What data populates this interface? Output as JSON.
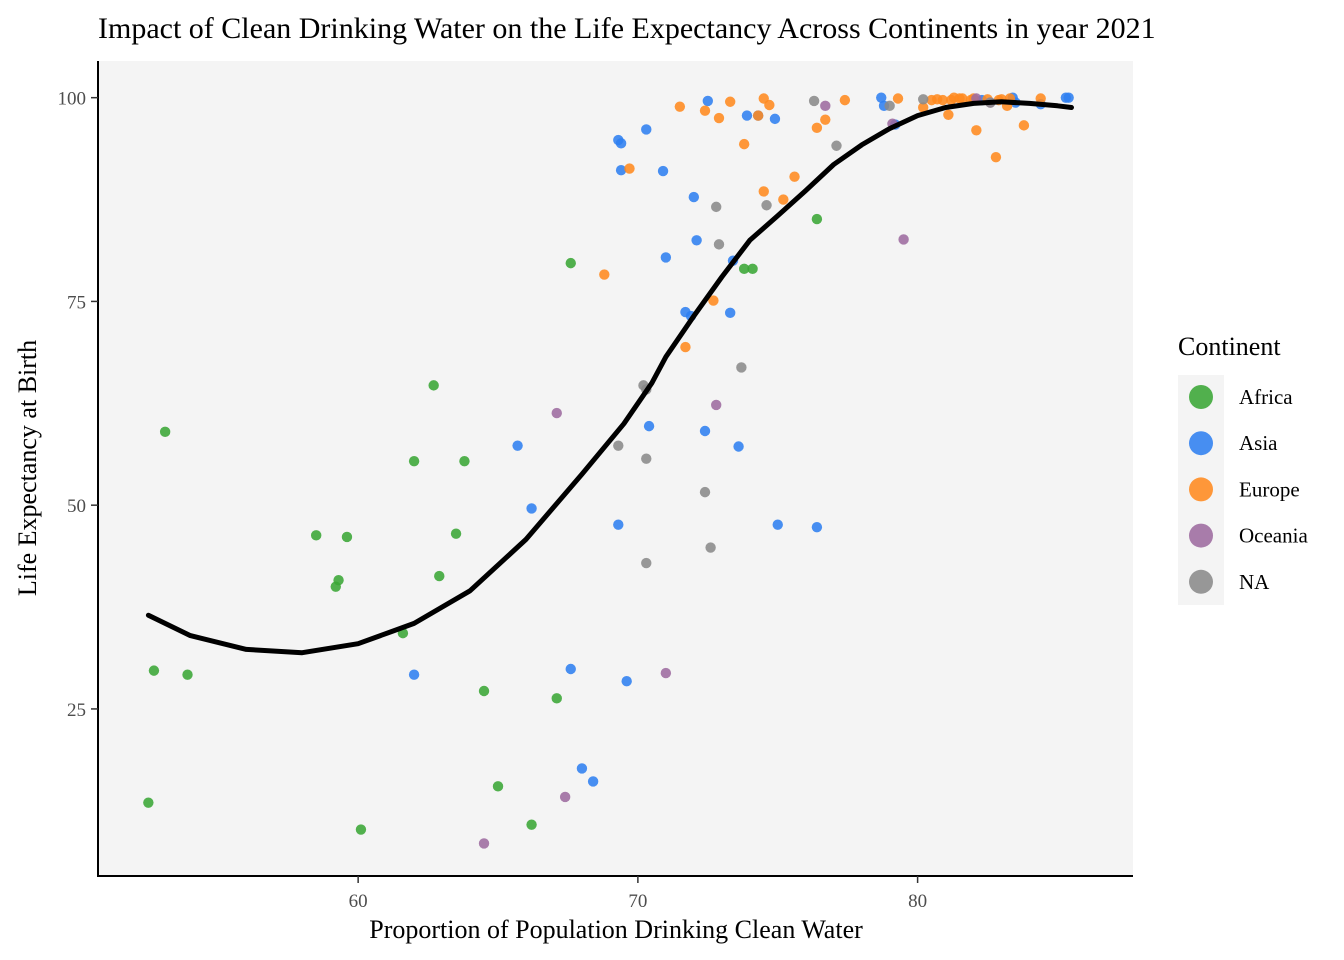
{
  "chart_data": {
    "type": "scatter",
    "title": "Impact of Clean Drinking Water on the Life Expectancy Across Continents in year 2021",
    "xlabel": "Proportion of Population Drinking Clean Water",
    "ylabel": "Life Expectancy at Birth",
    "xlim": [
      50.7,
      87.7
    ],
    "ylim": [
      4.5,
      104.5
    ],
    "x_ticks": [
      60,
      70,
      80
    ],
    "y_ticks": [
      25,
      50,
      75,
      100
    ],
    "grid": false,
    "background": "#f4f4f4",
    "legend": {
      "title": "Continent",
      "position": "right",
      "entries": [
        "Africa",
        "Asia",
        "Europe",
        "Oceania",
        "NA"
      ]
    },
    "colors": {
      "Africa": "#3aa635",
      "Asia": "#2f7ff0",
      "Europe": "#ff8a1f",
      "Oceania": "#9d6b9f",
      "NA": "#8a8a8a"
    },
    "series": [
      {
        "name": "Africa",
        "points": [
          [
            52.5,
            13.5
          ],
          [
            52.7,
            29.7
          ],
          [
            53.1,
            59.0
          ],
          [
            53.9,
            29.2
          ],
          [
            58.5,
            46.3
          ],
          [
            59.2,
            40.0
          ],
          [
            59.3,
            40.8
          ],
          [
            59.6,
            46.1
          ],
          [
            60.1,
            10.2
          ],
          [
            61.6,
            34.3
          ],
          [
            62.0,
            55.4
          ],
          [
            62.7,
            64.7
          ],
          [
            62.9,
            41.3
          ],
          [
            63.5,
            46.5
          ],
          [
            63.8,
            55.4
          ],
          [
            64.5,
            27.2
          ],
          [
            65.0,
            15.5
          ],
          [
            66.2,
            10.8
          ],
          [
            67.1,
            26.3
          ],
          [
            67.6,
            79.7
          ],
          [
            73.8,
            79.0
          ],
          [
            74.1,
            79.0
          ],
          [
            76.4,
            85.1
          ]
        ]
      },
      {
        "name": "Asia",
        "points": [
          [
            62.0,
            29.2
          ],
          [
            65.7,
            57.3
          ],
          [
            66.2,
            49.6
          ],
          [
            67.6,
            29.9
          ],
          [
            68.0,
            17.7
          ],
          [
            68.4,
            16.1
          ],
          [
            69.3,
            47.6
          ],
          [
            69.3,
            94.8
          ],
          [
            69.4,
            94.4
          ],
          [
            69.4,
            91.1
          ],
          [
            69.6,
            28.4
          ],
          [
            70.3,
            96.1
          ],
          [
            70.4,
            59.7
          ],
          [
            70.9,
            91.0
          ],
          [
            71.0,
            80.4
          ],
          [
            71.7,
            73.7
          ],
          [
            71.9,
            73.2
          ],
          [
            72.0,
            87.8
          ],
          [
            72.1,
            82.5
          ],
          [
            72.4,
            59.1
          ],
          [
            72.5,
            99.6
          ],
          [
            73.3,
            73.6
          ],
          [
            73.4,
            80.0
          ],
          [
            73.6,
            57.2
          ],
          [
            73.9,
            97.8
          ],
          [
            74.3,
            97.8
          ],
          [
            74.9,
            97.4
          ],
          [
            75.0,
            47.6
          ],
          [
            76.4,
            47.3
          ],
          [
            78.7,
            100.0
          ],
          [
            78.8,
            99.0
          ],
          [
            79.2,
            96.7
          ],
          [
            82.3,
            99.7
          ],
          [
            83.4,
            100.0
          ],
          [
            83.5,
            99.4
          ],
          [
            84.4,
            99.2
          ],
          [
            85.3,
            100.0
          ],
          [
            85.4,
            100.0
          ]
        ]
      },
      {
        "name": "Europe",
        "points": [
          [
            68.8,
            78.3
          ],
          [
            69.7,
            91.3
          ],
          [
            71.5,
            98.9
          ],
          [
            71.7,
            69.4
          ],
          [
            72.4,
            98.4
          ],
          [
            72.7,
            75.1
          ],
          [
            72.9,
            97.5
          ],
          [
            73.3,
            99.5
          ],
          [
            73.8,
            94.3
          ],
          [
            74.3,
            97.8
          ],
          [
            74.5,
            88.5
          ],
          [
            74.5,
            99.9
          ],
          [
            74.7,
            99.1
          ],
          [
            75.2,
            87.5
          ],
          [
            75.6,
            90.3
          ],
          [
            76.4,
            96.3
          ],
          [
            76.7,
            97.3
          ],
          [
            77.4,
            99.7
          ],
          [
            79.3,
            99.9
          ],
          [
            80.2,
            98.8
          ],
          [
            80.5,
            99.7
          ],
          [
            80.7,
            99.8
          ],
          [
            80.9,
            99.7
          ],
          [
            81.1,
            97.9
          ],
          [
            81.2,
            99.7
          ],
          [
            81.3,
            100.0
          ],
          [
            81.5,
            99.9
          ],
          [
            81.6,
            99.9
          ],
          [
            81.9,
            99.7
          ],
          [
            82.0,
            99.9
          ],
          [
            82.1,
            96.0
          ],
          [
            82.5,
            99.8
          ],
          [
            82.8,
            92.7
          ],
          [
            82.9,
            99.7
          ],
          [
            83.0,
            99.8
          ],
          [
            83.2,
            99.0
          ],
          [
            83.3,
            99.9
          ],
          [
            83.8,
            96.6
          ],
          [
            84.4,
            99.9
          ]
        ]
      },
      {
        "name": "Oceania",
        "points": [
          [
            64.5,
            8.5
          ],
          [
            67.1,
            61.3
          ],
          [
            67.4,
            14.2
          ],
          [
            71.0,
            29.4
          ],
          [
            72.8,
            62.3
          ],
          [
            76.7,
            99.0
          ],
          [
            79.1,
            96.8
          ],
          [
            79.5,
            82.6
          ],
          [
            82.1,
            99.9
          ],
          [
            82.6,
            99.4
          ]
        ]
      },
      {
        "name": "NA",
        "points": [
          [
            69.3,
            57.3
          ],
          [
            70.2,
            64.7
          ],
          [
            70.3,
            64.2
          ],
          [
            70.3,
            55.7
          ],
          [
            70.3,
            42.9
          ],
          [
            72.4,
            51.6
          ],
          [
            72.6,
            44.8
          ],
          [
            72.8,
            86.6
          ],
          [
            72.9,
            82.0
          ],
          [
            73.7,
            66.9
          ],
          [
            74.6,
            86.8
          ],
          [
            76.3,
            99.6
          ],
          [
            77.1,
            94.1
          ],
          [
            79.0,
            99.0
          ],
          [
            80.2,
            99.8
          ],
          [
            82.6,
            99.4
          ]
        ]
      }
    ],
    "trend_line": {
      "name": "smooth",
      "color": "#000000",
      "points": [
        [
          52.5,
          36.5
        ],
        [
          54,
          34.0
        ],
        [
          56,
          32.3
        ],
        [
          58,
          31.9
        ],
        [
          60,
          33.0
        ],
        [
          62,
          35.5
        ],
        [
          64,
          39.5
        ],
        [
          66,
          45.8
        ],
        [
          68,
          53.8
        ],
        [
          69.5,
          60.0
        ],
        [
          70.5,
          65.0
        ],
        [
          71,
          68.2
        ],
        [
          72,
          73.2
        ],
        [
          73,
          78.0
        ],
        [
          74,
          82.5
        ],
        [
          75,
          85.5
        ],
        [
          76,
          88.6
        ],
        [
          77,
          91.8
        ],
        [
          78,
          94.2
        ],
        [
          79,
          96.2
        ],
        [
          80,
          97.8
        ],
        [
          81,
          98.8
        ],
        [
          82,
          99.3
        ],
        [
          83,
          99.5
        ],
        [
          84,
          99.3
        ],
        [
          85,
          99.0
        ],
        [
          85.5,
          98.8
        ]
      ]
    }
  }
}
